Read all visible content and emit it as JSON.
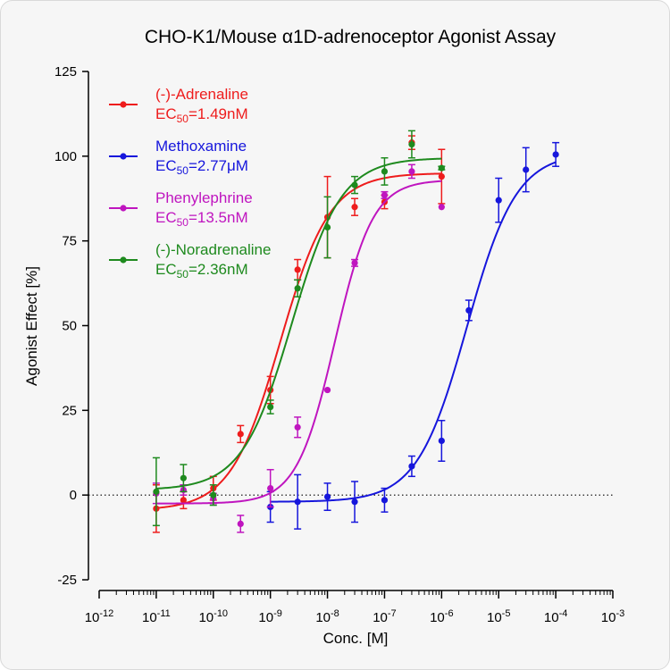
{
  "chart_data": {
    "type": "scatter",
    "title": "CHO-K1/Mouse α1D-adrenoceptor Agonist Assay",
    "xlabel": "Conc. [M]",
    "ylabel": "Agonist Effect [%]",
    "x_scale": "log",
    "xlim": [
      1e-12,
      0.001
    ],
    "ylim": [
      -25,
      125
    ],
    "y_ticks": [
      -25,
      0,
      25,
      50,
      75,
      100,
      125
    ],
    "x_ticks": [
      1e-12,
      1e-11,
      1e-10,
      1e-09,
      1e-08,
      1e-07,
      1e-06,
      1e-05,
      0.0001,
      0.001
    ],
    "x_tick_labels": [
      {
        "base": "10",
        "exp": "-12"
      },
      {
        "base": "10",
        "exp": "-11"
      },
      {
        "base": "10",
        "exp": "-10"
      },
      {
        "base": "10",
        "exp": "-9"
      },
      {
        "base": "10",
        "exp": "-8"
      },
      {
        "base": "10",
        "exp": "-7"
      },
      {
        "base": "10",
        "exp": "-6"
      },
      {
        "base": "10",
        "exp": "-5"
      },
      {
        "base": "10",
        "exp": "-4"
      },
      {
        "base": "10",
        "exp": "-3"
      }
    ],
    "reference_line": {
      "y": 0,
      "style": "dotted"
    },
    "legend_position": "top-left",
    "series": [
      {
        "name": "(-)-Adrenaline",
        "ec50_label": {
          "prefix": "EC",
          "sub": "50",
          "suffix": "=1.49nM"
        },
        "color": "#ee1c1c",
        "fit": {
          "bottom": -4.5,
          "top": 95,
          "logEC50": -8.827,
          "hill": 1.0
        },
        "points": [
          {
            "x": 1e-11,
            "y": -4,
            "err": 7
          },
          {
            "x": 3e-11,
            "y": -1.5,
            "err": 2.5
          },
          {
            "x": 1e-10,
            "y": 2,
            "err": 3.5
          },
          {
            "x": 3e-10,
            "y": 18,
            "err": 2.5
          },
          {
            "x": 1e-09,
            "y": 31,
            "err": 4
          },
          {
            "x": 3e-09,
            "y": 66.5,
            "err": 3
          },
          {
            "x": 1e-08,
            "y": 82,
            "err": 12
          },
          {
            "x": 3e-08,
            "y": 85,
            "err": 2.5
          },
          {
            "x": 1e-07,
            "y": 86.5,
            "err": 2
          },
          {
            "x": 3e-07,
            "y": 104,
            "err": 2
          },
          {
            "x": 1e-06,
            "y": 94,
            "err": 8
          }
        ]
      },
      {
        "name": "Methoxamine",
        "ec50_label": {
          "prefix": "EC",
          "sub": "50",
          "suffix": "=2.77μM"
        },
        "color": "#1616dc",
        "fit": {
          "bottom": -2,
          "top": 101,
          "logEC50": -5.558,
          "hill": 1.0
        },
        "points": [
          {
            "x": 1e-09,
            "y": -3.5,
            "err": 4.5
          },
          {
            "x": 3e-09,
            "y": -2,
            "err": 8
          },
          {
            "x": 1e-08,
            "y": -0.5,
            "err": 4
          },
          {
            "x": 3e-08,
            "y": -2,
            "err": 6
          },
          {
            "x": 1e-07,
            "y": -1.5,
            "err": 3.5
          },
          {
            "x": 3e-07,
            "y": 8.5,
            "err": 3
          },
          {
            "x": 1e-06,
            "y": 16,
            "err": 6
          },
          {
            "x": 3e-06,
            "y": 54.5,
            "err": 3
          },
          {
            "x": 1e-05,
            "y": 87,
            "err": 6.5
          },
          {
            "x": 3e-05,
            "y": 96,
            "err": 6.5
          },
          {
            "x": 0.0001,
            "y": 100.5,
            "err": 3.5
          }
        ]
      },
      {
        "name": "Phenylephrine",
        "ec50_label": {
          "prefix": "EC",
          "sub": "50",
          "suffix": "=13.5nM"
        },
        "color": "#bf15bf",
        "fit": {
          "bottom": -2.5,
          "top": 93,
          "logEC50": -7.87,
          "hill": 1.3
        },
        "points": [
          {
            "x": 1e-11,
            "y": 0.5,
            "err": 3
          },
          {
            "x": 3e-11,
            "y": 1.5,
            "err": 1.5
          },
          {
            "x": 1e-10,
            "y": -1,
            "err": 1.5
          },
          {
            "x": 3e-10,
            "y": -8.5,
            "err": 2.5
          },
          {
            "x": 1e-09,
            "y": 2,
            "err": 5.5
          },
          {
            "x": 3e-09,
            "y": 20,
            "err": 3
          },
          {
            "x": 1e-08,
            "y": 31,
            "err": 0
          },
          {
            "x": 3e-08,
            "y": 68.5,
            "err": 1
          },
          {
            "x": 1e-07,
            "y": 88.5,
            "err": 1
          },
          {
            "x": 3e-07,
            "y": 95.5,
            "err": 2
          },
          {
            "x": 1e-06,
            "y": 85,
            "err": 0
          }
        ]
      },
      {
        "name": "(-)-Noradrenaline",
        "ec50_label": {
          "prefix": "EC",
          "sub": "50",
          "suffix": "=2.36nM"
        },
        "color": "#1e8a1e",
        "fit": {
          "bottom": 1.5,
          "top": 99.5,
          "logEC50": -8.627,
          "hill": 1.0
        },
        "points": [
          {
            "x": 1e-11,
            "y": 1,
            "err": 10
          },
          {
            "x": 3e-11,
            "y": 5,
            "err": 4
          },
          {
            "x": 1e-10,
            "y": 0,
            "err": 3
          },
          {
            "x": 1e-09,
            "y": 26,
            "err": 2
          },
          {
            "x": 3e-09,
            "y": 61,
            "err": 2.5
          },
          {
            "x": 1e-08,
            "y": 79,
            "err": 9
          },
          {
            "x": 3e-08,
            "y": 91.5,
            "err": 2.5
          },
          {
            "x": 1e-07,
            "y": 95.5,
            "err": 4
          },
          {
            "x": 3e-07,
            "y": 103.5,
            "err": 4
          },
          {
            "x": 1e-06,
            "y": 96.5,
            "err": 0.5
          }
        ]
      }
    ]
  }
}
